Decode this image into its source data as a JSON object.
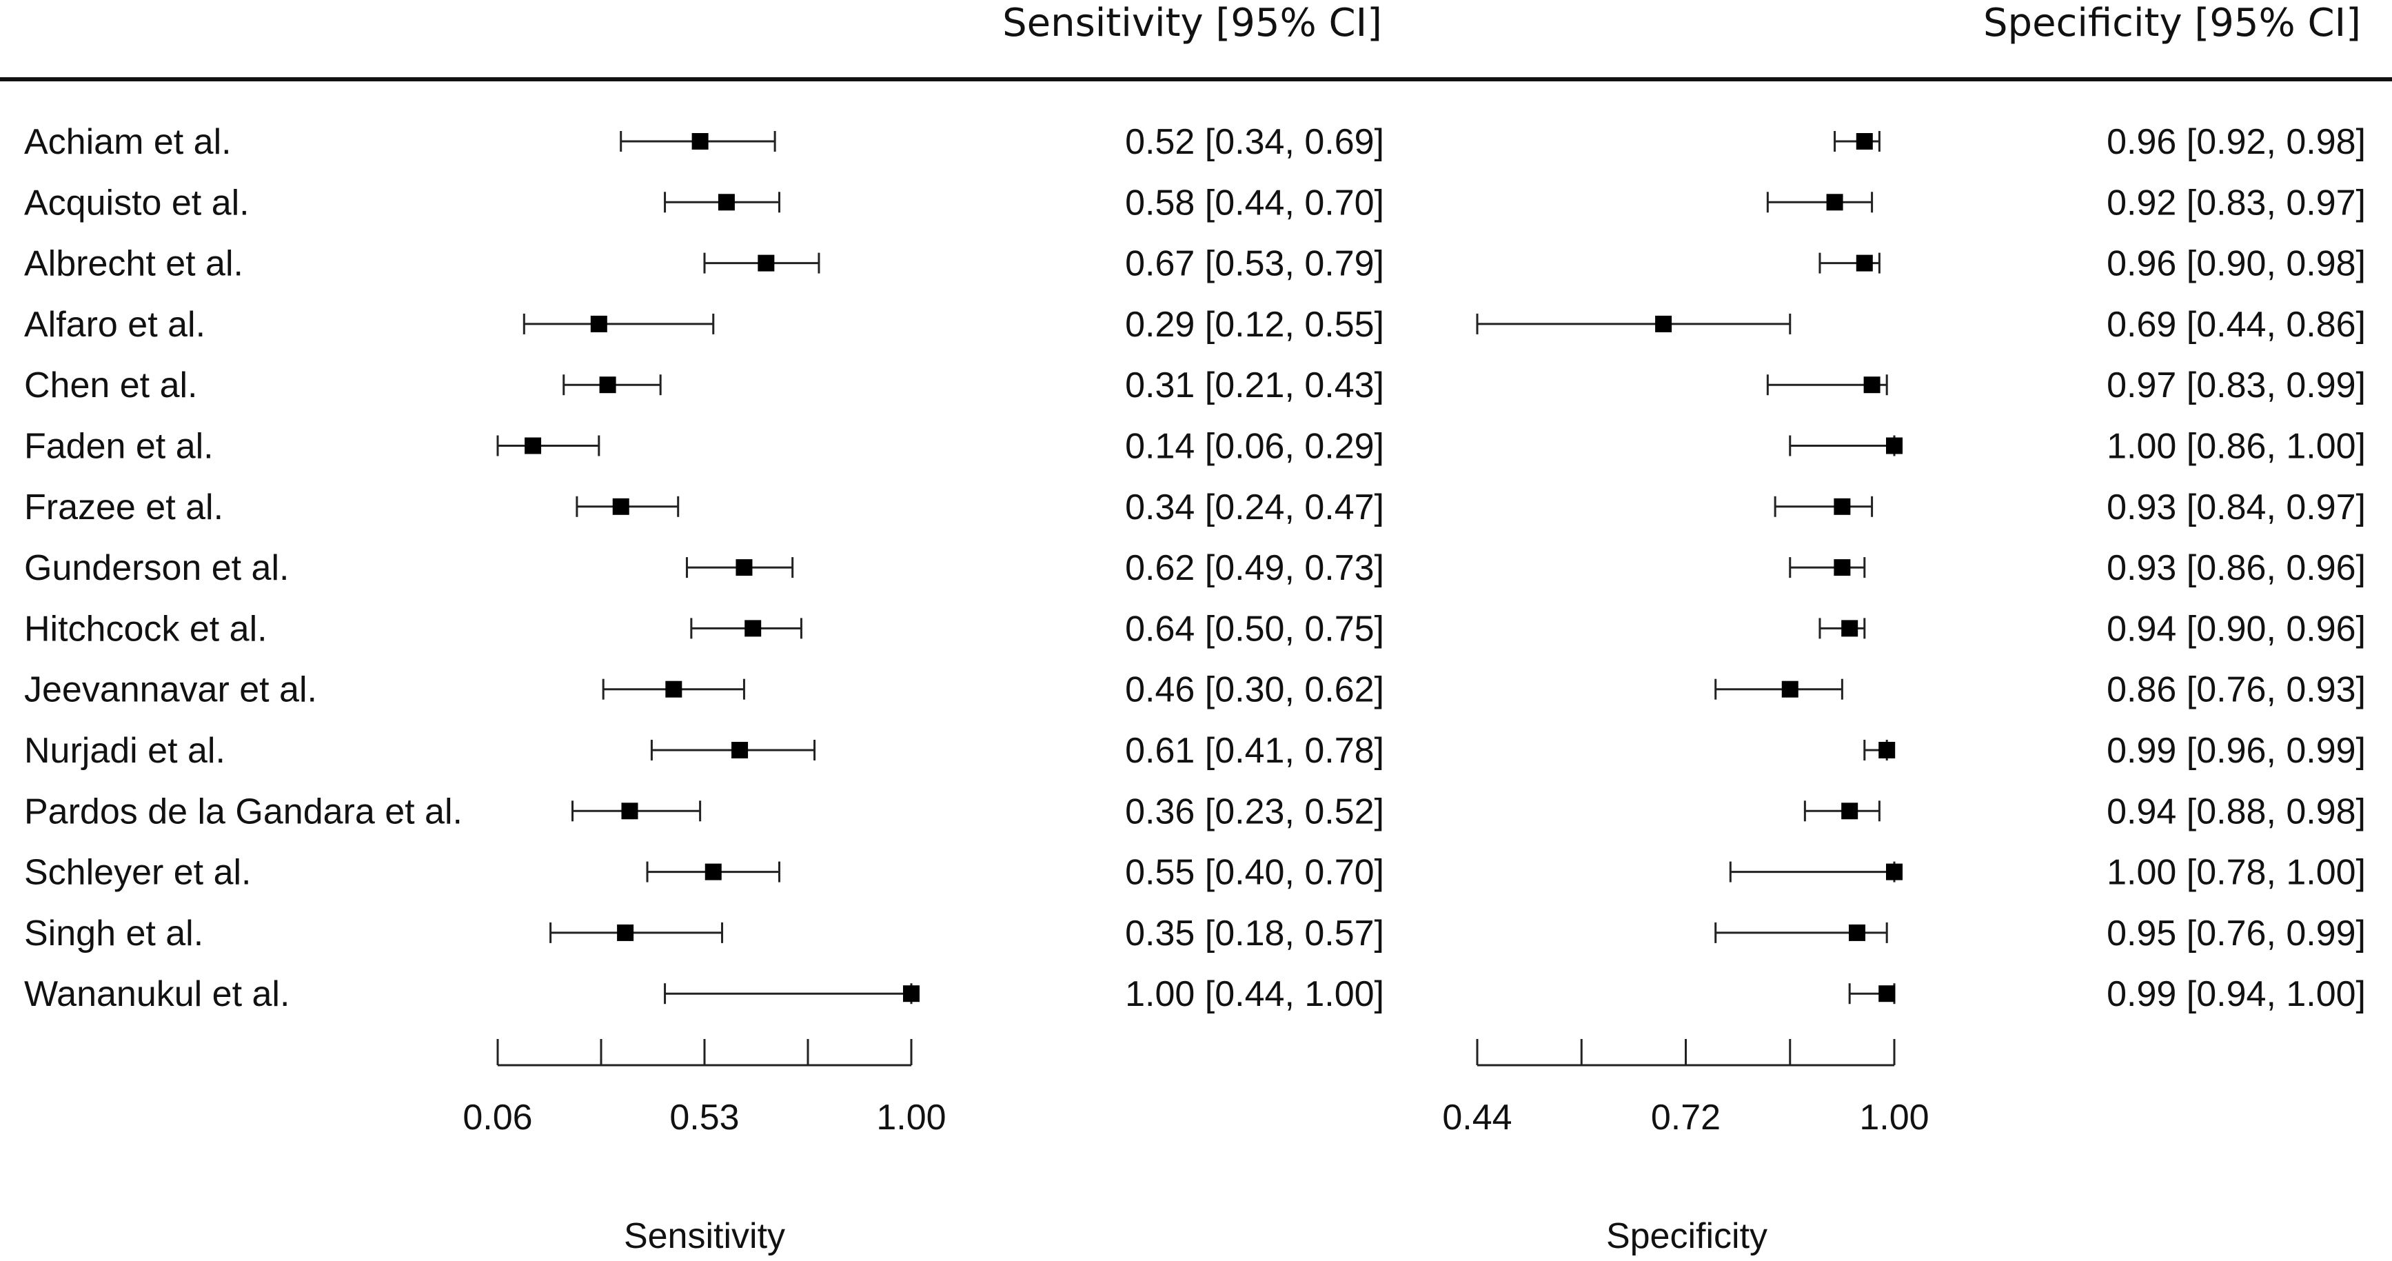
{
  "chart_data": {
    "type": "forest",
    "studies": [
      "Achiam et al.",
      "Acquisto et al.",
      "Albrecht et al.",
      "Alfaro et al.",
      "Chen et al.",
      "Faden et al.",
      "Frazee et al.",
      "Gunderson et al.",
      "Hitchcock et al.",
      "Jeevannavar et al.",
      "Nurjadi et al.",
      "Pardos de la Gandara et al.",
      "Schleyer et al.",
      "Singh et al.",
      "Wananukul et al."
    ],
    "sensitivity": {
      "header": "Sensitivity [95% CI]",
      "xlabel": "Sensitivity",
      "axis_range": [
        0.06,
        1.0
      ],
      "ticks": [
        0.06,
        0.295,
        0.53,
        0.765,
        1.0
      ],
      "tick_labels": [
        "0.06",
        "",
        "0.53",
        "",
        "1.00"
      ],
      "estimates": [
        0.52,
        0.58,
        0.67,
        0.29,
        0.31,
        0.14,
        0.34,
        0.62,
        0.64,
        0.46,
        0.61,
        0.36,
        0.55,
        0.35,
        1.0
      ],
      "lower": [
        0.34,
        0.44,
        0.53,
        0.12,
        0.21,
        0.06,
        0.24,
        0.49,
        0.5,
        0.3,
        0.41,
        0.23,
        0.4,
        0.18,
        0.44
      ],
      "upper": [
        0.69,
        0.7,
        0.79,
        0.55,
        0.43,
        0.29,
        0.47,
        0.73,
        0.75,
        0.62,
        0.78,
        0.52,
        0.7,
        0.57,
        1.0
      ],
      "labels": [
        "0.52 [0.34, 0.69]",
        "0.58 [0.44, 0.70]",
        "0.67 [0.53, 0.79]",
        "0.29 [0.12, 0.55]",
        "0.31 [0.21, 0.43]",
        "0.14 [0.06, 0.29]",
        "0.34 [0.24, 0.47]",
        "0.62 [0.49, 0.73]",
        "0.64 [0.50, 0.75]",
        "0.46 [0.30, 0.62]",
        "0.61 [0.41, 0.78]",
        "0.36 [0.23, 0.52]",
        "0.55 [0.40, 0.70]",
        "0.35 [0.18, 0.57]",
        "1.00 [0.44, 1.00]"
      ]
    },
    "specificity": {
      "header": "Specificity [95% CI]",
      "xlabel": "Specificity",
      "axis_range": [
        0.44,
        1.0
      ],
      "ticks": [
        0.44,
        0.58,
        0.72,
        0.86,
        1.0
      ],
      "tick_labels": [
        "0.44",
        "",
        "0.72",
        "",
        "1.00"
      ],
      "estimates": [
        0.96,
        0.92,
        0.96,
        0.69,
        0.97,
        1.0,
        0.93,
        0.93,
        0.94,
        0.86,
        0.99,
        0.94,
        1.0,
        0.95,
        0.99
      ],
      "lower": [
        0.92,
        0.83,
        0.9,
        0.44,
        0.83,
        0.86,
        0.84,
        0.86,
        0.9,
        0.76,
        0.96,
        0.88,
        0.78,
        0.76,
        0.94
      ],
      "upper": [
        0.98,
        0.97,
        0.98,
        0.86,
        0.99,
        1.0,
        0.97,
        0.96,
        0.96,
        0.93,
        0.99,
        0.98,
        1.0,
        0.99,
        1.0
      ],
      "labels": [
        "0.96 [0.92, 0.98]",
        "0.92 [0.83, 0.97]",
        "0.96 [0.90, 0.98]",
        "0.69 [0.44, 0.86]",
        "0.97 [0.83, 0.99]",
        "1.00 [0.86, 1.00]",
        "0.93 [0.84, 0.97]",
        "0.93 [0.86, 0.96]",
        "0.94 [0.90, 0.96]",
        "0.86 [0.76, 0.93]",
        "0.99 [0.96, 0.99]",
        "0.94 [0.88, 0.98]",
        "1.00 [0.78, 1.00]",
        "0.95 [0.76, 0.99]",
        "0.99 [0.94, 1.00]"
      ]
    },
    "grid": false,
    "colors": {
      "marker": "#000000",
      "line": "#222222",
      "text": "#111111"
    }
  }
}
